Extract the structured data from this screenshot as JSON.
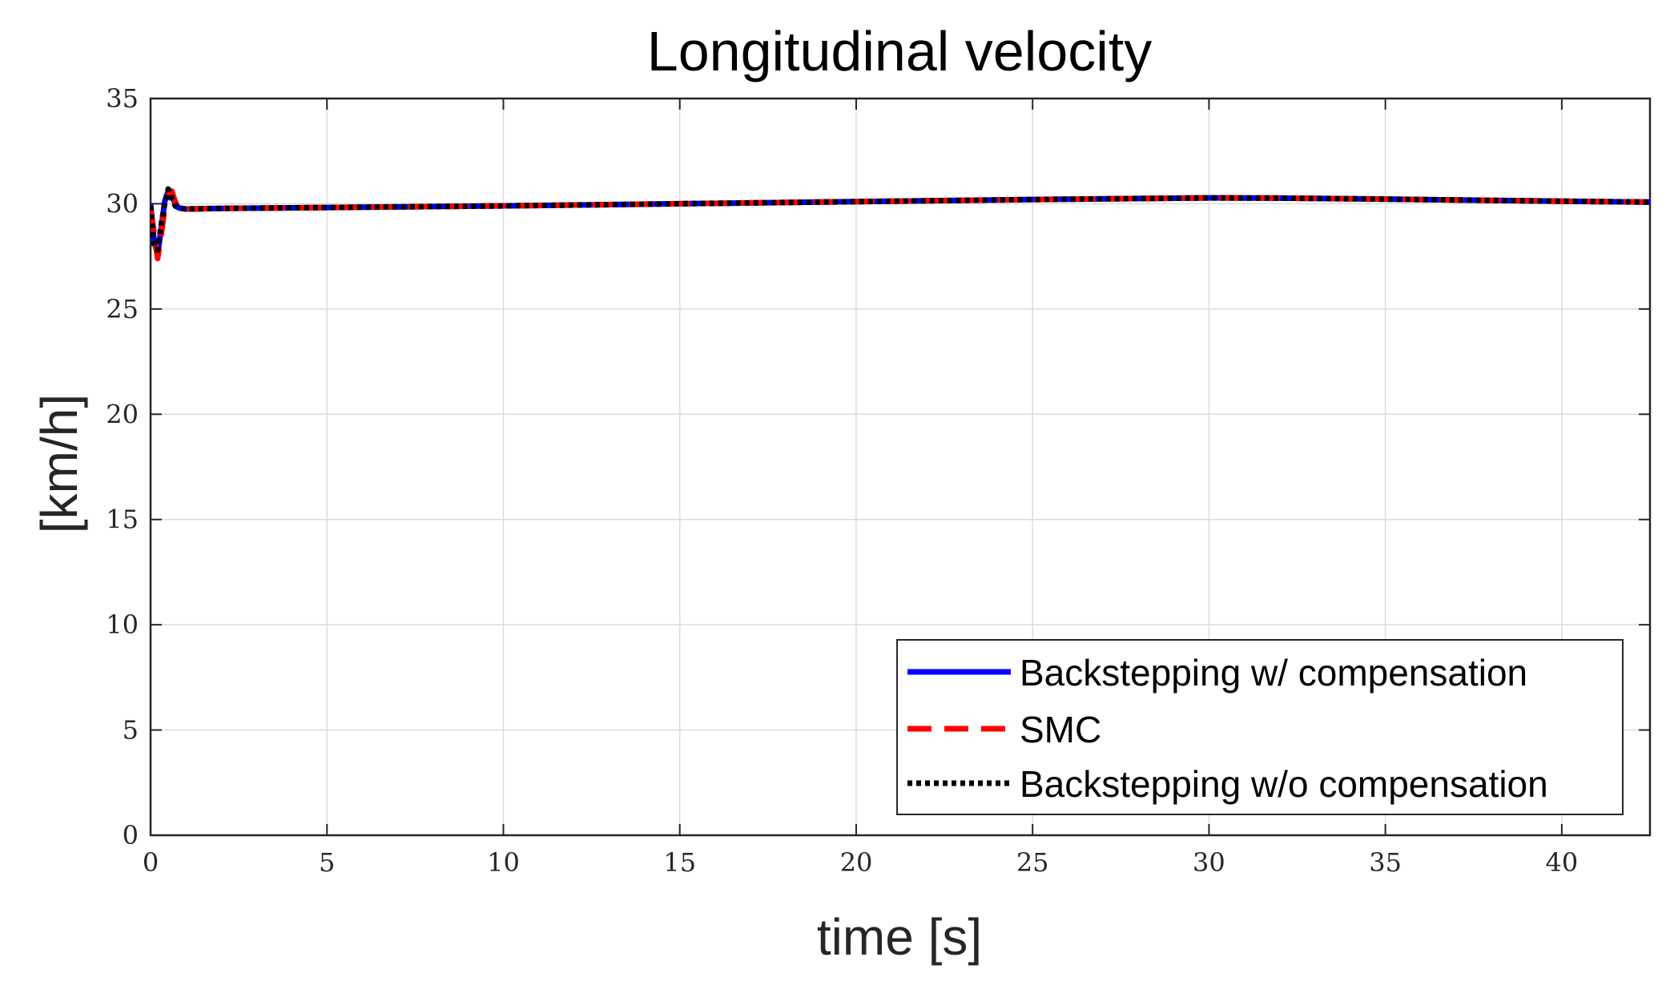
{
  "chart_data": {
    "type": "line",
    "title": "Longitudinal velocity",
    "xlabel": "time [s]",
    "ylabel": "[km/h]",
    "xlim": [
      0,
      42.5
    ],
    "ylim": [
      0,
      35
    ],
    "xticks": [
      0,
      5,
      10,
      15,
      20,
      25,
      30,
      35,
      40
    ],
    "yticks": [
      0,
      5,
      10,
      15,
      20,
      25,
      30,
      35
    ],
    "grid": true,
    "legend_position": "bottom-right",
    "series": [
      {
        "name": "Backstepping w/ compensation",
        "color": "#0000ff",
        "style": "solid",
        "x": [
          0,
          0.1,
          0.2,
          0.3,
          0.4,
          0.5,
          0.6,
          0.7,
          0.8,
          1.0,
          2,
          5,
          10,
          15,
          20,
          25,
          30,
          32,
          35,
          40,
          42.5
        ],
        "y": [
          30.0,
          28.2,
          27.6,
          28.8,
          30.1,
          30.6,
          30.4,
          30.0,
          29.8,
          29.75,
          29.78,
          29.82,
          29.9,
          30.0,
          30.1,
          30.2,
          30.28,
          30.27,
          30.22,
          30.12,
          30.08
        ]
      },
      {
        "name": "SMC",
        "color": "#ff0000",
        "style": "dashed",
        "x": [
          0,
          0.1,
          0.2,
          0.3,
          0.4,
          0.5,
          0.6,
          0.7,
          0.8,
          1.0,
          2,
          5,
          10,
          15,
          20,
          25,
          30,
          32,
          35,
          40,
          42.5
        ],
        "y": [
          29.8,
          28.6,
          27.4,
          28.5,
          29.8,
          30.4,
          30.6,
          30.1,
          29.8,
          29.75,
          29.78,
          29.82,
          29.9,
          30.0,
          30.1,
          30.2,
          30.28,
          30.27,
          30.22,
          30.12,
          30.08
        ]
      },
      {
        "name": "Backstepping w/o compensation",
        "color": "#000000",
        "style": "dotted",
        "x": [
          0,
          0.1,
          0.2,
          0.3,
          0.4,
          0.5,
          0.6,
          0.7,
          0.8,
          1.0,
          2,
          5,
          10,
          15,
          20,
          25,
          30,
          32,
          35,
          40,
          42.5
        ],
        "y": [
          29.9,
          28.0,
          27.8,
          29.0,
          30.0,
          30.7,
          30.3,
          29.9,
          29.8,
          29.75,
          29.78,
          29.82,
          29.9,
          30.0,
          30.1,
          30.2,
          30.28,
          30.27,
          30.22,
          30.12,
          30.08
        ]
      }
    ]
  }
}
